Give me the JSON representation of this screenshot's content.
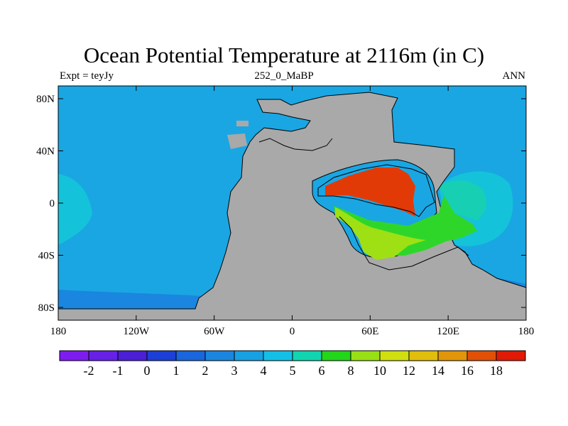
{
  "title": "Ocean Potential Temperature at 2116m (in C)",
  "subtitle_left": "Expt = teyJy",
  "subtitle_center": "252_0_MaBP",
  "subtitle_right": "ANN",
  "x_ticks": [
    "180",
    "120W",
    "60W",
    "0",
    "60E",
    "120E",
    "180"
  ],
  "y_ticks": [
    "80N",
    "40N",
    "0",
    "40S",
    "80S"
  ],
  "colorbar": {
    "colors": [
      "#7e1cf0",
      "#6620e6",
      "#4a1fd6",
      "#1c3fd8",
      "#1a66dc",
      "#1a86df",
      "#17a0e2",
      "#14bfe6",
      "#10d6b0",
      "#22d61a",
      "#98e014",
      "#cfe00e",
      "#e0be0b",
      "#e09608",
      "#e05006",
      "#e01a06"
    ],
    "labels": [
      "-2",
      "-1",
      "0",
      "1",
      "2",
      "3",
      "4",
      "5",
      "6",
      "8",
      "10",
      "12",
      "14",
      "16",
      "18"
    ]
  },
  "colors": {
    "ocean_cold": "#1aa6e3",
    "ocean_mid": "#14c3d9",
    "ocean_deep": "#1a86df",
    "land": "#a9a9a9",
    "tethys_warm": "#e23a07",
    "tethys_green": "#2fd62a",
    "tethys_yellowgreen": "#9fe014",
    "east_teal": "#17d0b4"
  }
}
